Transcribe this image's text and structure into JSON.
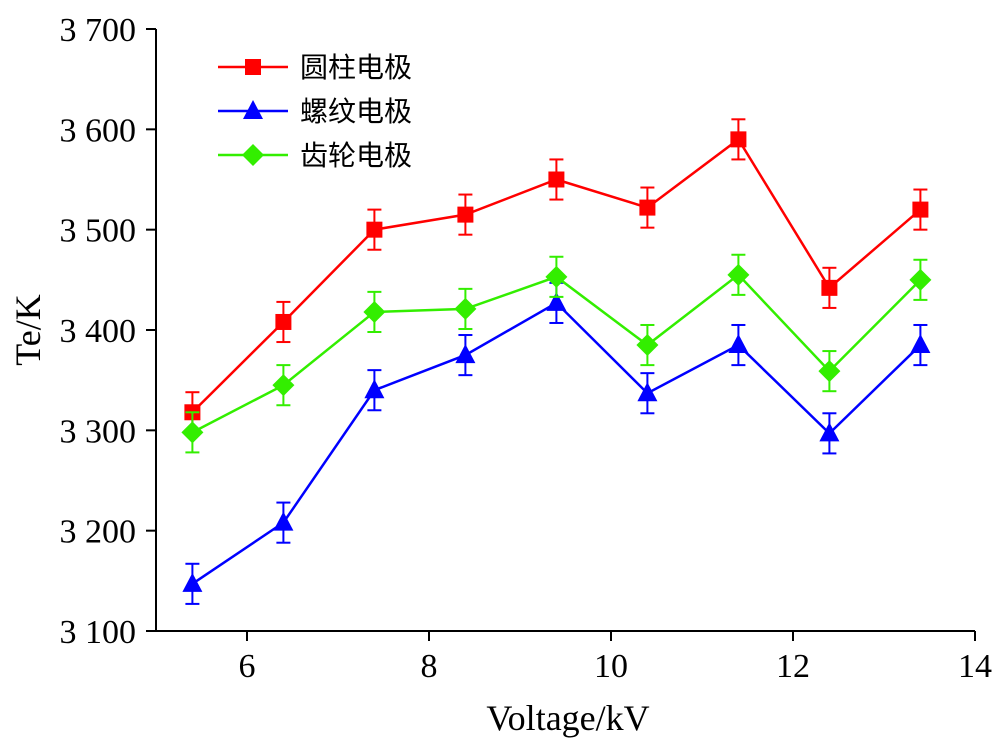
{
  "chart_data": {
    "type": "line",
    "title": "",
    "xlabel": "Voltage/kV",
    "ylabel": "Te/K",
    "xlim": [
      5,
      14
    ],
    "ylim": [
      3100,
      3700
    ],
    "xticks": [
      6,
      8,
      10,
      12,
      14
    ],
    "xtick_labels": [
      "6",
      "8",
      "10",
      "12",
      "14"
    ],
    "yticks": [
      3100,
      3200,
      3300,
      3400,
      3500,
      3600,
      3700
    ],
    "ytick_labels": [
      "3 100",
      "3 200",
      "3 300",
      "3 400",
      "3 500",
      "3 600",
      "3 700"
    ],
    "grid": false,
    "legend_position": "top-left",
    "x": [
      5.4,
      6.4,
      7.4,
      8.4,
      9.4,
      10.4,
      11.4,
      12.4,
      13.4
    ],
    "series": [
      {
        "name": "圆柱电极",
        "color": "#ff0000",
        "marker": "square",
        "values": [
          3318,
          3408,
          3500,
          3515,
          3550,
          3522,
          3590,
          3442,
          3520
        ],
        "error": [
          20,
          20,
          20,
          20,
          20,
          20,
          20,
          20,
          20
        ]
      },
      {
        "name": "螺纹电极",
        "color": "#0000ff",
        "marker": "triangle",
        "values": [
          3147,
          3208,
          3340,
          3375,
          3427,
          3337,
          3385,
          3297,
          3385
        ],
        "error": [
          20,
          20,
          20,
          20,
          20,
          20,
          20,
          20,
          20
        ]
      },
      {
        "name": "齿轮电极",
        "color": "#33ee00",
        "marker": "diamond",
        "values": [
          3298,
          3345,
          3418,
          3421,
          3453,
          3385,
          3455,
          3359,
          3450
        ],
        "error": [
          20,
          20,
          20,
          20,
          20,
          20,
          20,
          20,
          20
        ]
      }
    ]
  }
}
